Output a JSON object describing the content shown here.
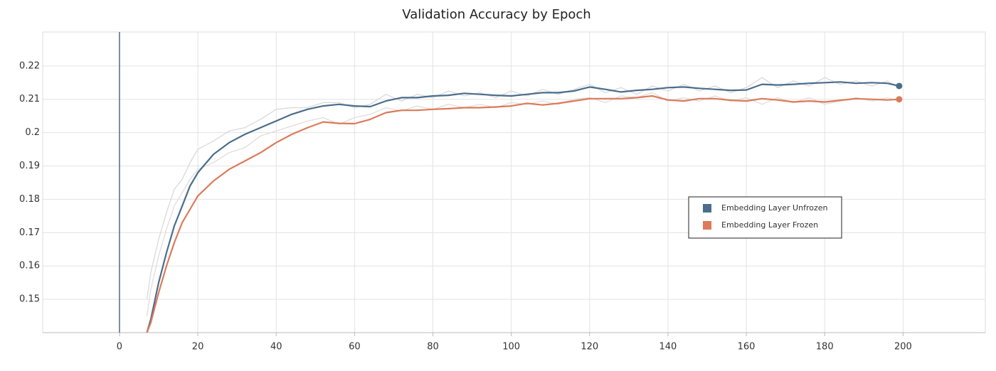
{
  "chart_data": {
    "type": "line",
    "title": "Validation Accuracy by Epoch",
    "x": [
      7,
      8,
      10,
      12,
      14,
      16,
      18,
      20,
      24,
      28,
      32,
      36,
      40,
      44,
      48,
      52,
      56,
      60,
      64,
      68,
      72,
      76,
      80,
      84,
      88,
      92,
      96,
      100,
      104,
      108,
      112,
      116,
      120,
      124,
      128,
      132,
      136,
      140,
      144,
      148,
      152,
      156,
      160,
      164,
      168,
      172,
      176,
      180,
      184,
      188,
      192,
      196,
      199
    ],
    "series": [
      {
        "color": "#d9d9d9",
        "values": [
          0.15,
          0.158,
          0.168,
          0.176,
          0.183,
          0.186,
          0.191,
          0.195,
          0.1975,
          0.2005,
          0.2015,
          0.204,
          0.207,
          0.2075,
          0.2075,
          0.209,
          0.209,
          0.2075,
          0.2085,
          0.2115,
          0.2095,
          0.2115,
          0.2105,
          0.2125,
          0.211,
          0.212,
          0.2105,
          0.2125,
          0.211,
          0.213,
          0.2115,
          0.213,
          0.2145,
          0.212,
          0.2135,
          0.2115,
          0.214,
          0.2125,
          0.2145,
          0.2125,
          0.214,
          0.212,
          0.2135,
          0.2165,
          0.2135,
          0.2155,
          0.214,
          0.2165,
          0.2145,
          0.2155,
          0.214,
          0.2155,
          0.2135
        ]
      },
      {
        "color": "#e3dcda",
        "values": [
          0.145,
          0.153,
          0.163,
          0.171,
          0.178,
          0.182,
          0.186,
          0.189,
          0.191,
          0.194,
          0.1955,
          0.199,
          0.2005,
          0.202,
          0.2035,
          0.2045,
          0.2025,
          0.2045,
          0.2055,
          0.2075,
          0.2065,
          0.208,
          0.207,
          0.2085,
          0.2075,
          0.2085,
          0.2075,
          0.209,
          0.2085,
          0.2095,
          0.2085,
          0.21,
          0.2105,
          0.209,
          0.211,
          0.2105,
          0.212,
          0.2095,
          0.2105,
          0.2095,
          0.211,
          0.2095,
          0.2105,
          0.2085,
          0.2105,
          0.209,
          0.2105,
          0.2085,
          0.2095,
          0.2105,
          0.2095,
          0.2105,
          0.2095
        ]
      },
      {
        "name": "Embedding Layer Unfrozen",
        "color": "#4a6d8c",
        "values": [
          0.14,
          0.144,
          0.155,
          0.164,
          0.172,
          0.178,
          0.184,
          0.188,
          0.1935,
          0.197,
          0.1995,
          0.2015,
          0.2035,
          0.2055,
          0.207,
          0.208,
          0.2085,
          0.208,
          0.2078,
          0.2095,
          0.2105,
          0.2105,
          0.211,
          0.2112,
          0.2118,
          0.2115,
          0.2112,
          0.211,
          0.2115,
          0.212,
          0.212,
          0.2125,
          0.2137,
          0.213,
          0.2122,
          0.2127,
          0.213,
          0.2135,
          0.2137,
          0.2133,
          0.213,
          0.2127,
          0.2128,
          0.2145,
          0.2143,
          0.2145,
          0.2148,
          0.215,
          0.2152,
          0.2148,
          0.215,
          0.2148,
          0.214
        ]
      },
      {
        "name": "Embedding Layer Frozen",
        "color": "#dc7a5a",
        "values": [
          0.14,
          0.143,
          0.152,
          0.16,
          0.167,
          0.173,
          0.177,
          0.181,
          0.1855,
          0.189,
          0.1915,
          0.194,
          0.197,
          0.1995,
          0.2015,
          0.2032,
          0.2028,
          0.2027,
          0.204,
          0.206,
          0.2067,
          0.2067,
          0.207,
          0.2072,
          0.2075,
          0.2075,
          0.2077,
          0.208,
          0.2088,
          0.2083,
          0.2088,
          0.2095,
          0.2102,
          0.2102,
          0.2102,
          0.2105,
          0.211,
          0.2098,
          0.2095,
          0.2102,
          0.2102,
          0.2097,
          0.2095,
          0.2102,
          0.2098,
          0.2092,
          0.2095,
          0.2092,
          0.2097,
          0.2102,
          0.21,
          0.2098,
          0.21
        ]
      }
    ],
    "xlim": [
      -19.6,
      221
    ],
    "xticks": [
      0,
      20,
      40,
      60,
      80,
      100,
      120,
      140,
      160,
      180,
      200
    ],
    "ylim": [
      0.14,
      0.2302
    ],
    "yticks": [
      0.15,
      0.16,
      0.17,
      0.18,
      0.19,
      0.2,
      0.21,
      0.22
    ],
    "grid": true,
    "legend": "right"
  }
}
